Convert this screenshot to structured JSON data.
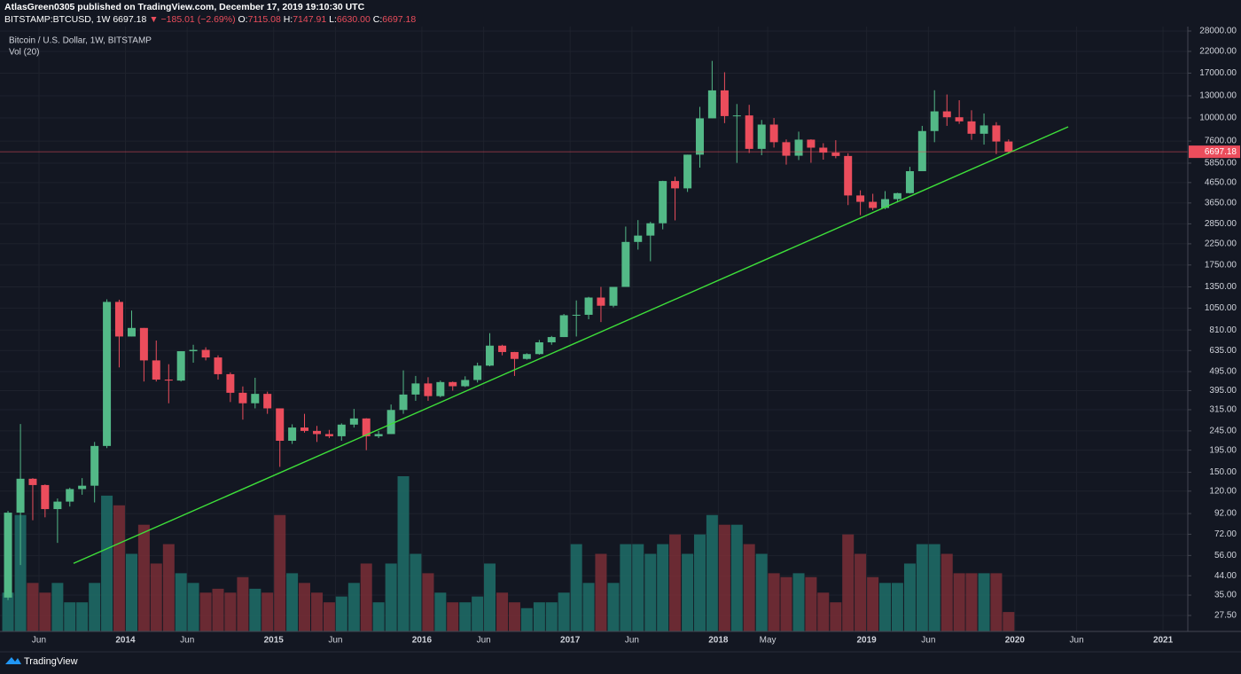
{
  "header": {
    "published": "AtlasGreen0305 published on TradingView.com, December 17, 2019 19:10:30 UTC",
    "symbol": "BITSTAMP:BTCUSD, 1W",
    "last": "6697.18",
    "change": "▼ −185.01 (−2.69%)",
    "ohlc": [
      {
        "label": "O:",
        "value": "7115.08"
      },
      {
        "label": "H:",
        "value": "7147.91"
      },
      {
        "label": "L:",
        "value": "6630.00"
      },
      {
        "label": "C:",
        "value": "6697.18"
      }
    ]
  },
  "footer": {
    "brand": "TradingView"
  },
  "chart_data": {
    "type": "candlestick",
    "title": "Bitcoin / U.S. Dollar, 1W, BITSTAMP",
    "volume_label": "Vol (20)",
    "log": true,
    "grid": true,
    "up_color": "#53b987",
    "down_color": "#eb4d5c",
    "up_volume_color": "#1f6e68",
    "down_volume_color": "#7a2e36",
    "xlim": [
      2013.154,
      2021.167
    ],
    "ylim": [
      22.76,
      29510
    ],
    "xticks": [
      {
        "value": 2013.417,
        "label": "Jun"
      },
      {
        "value": 2014,
        "label": "2014"
      },
      {
        "value": 2014.417,
        "label": "Jun"
      },
      {
        "value": 2015,
        "label": "2015"
      },
      {
        "value": 2015.417,
        "label": "Jun"
      },
      {
        "value": 2016,
        "label": "2016"
      },
      {
        "value": 2016.417,
        "label": "Jun"
      },
      {
        "value": 2017,
        "label": "2017"
      },
      {
        "value": 2017.417,
        "label": "Jun"
      },
      {
        "value": 2018,
        "label": "2018"
      },
      {
        "value": 2018.333,
        "label": "May"
      },
      {
        "value": 2019,
        "label": "2019"
      },
      {
        "value": 2019.417,
        "label": "Jun"
      },
      {
        "value": 2020,
        "label": "2020"
      },
      {
        "value": 2020.417,
        "label": "Jun"
      },
      {
        "value": 2021,
        "label": "2021"
      }
    ],
    "yticks": [
      {
        "value": 28000,
        "label": "28000.00"
      },
      {
        "value": 22000,
        "label": "22000.00"
      },
      {
        "value": 17000,
        "label": "17000.00"
      },
      {
        "value": 13000,
        "label": "13000.00"
      },
      {
        "value": 10000,
        "label": "10000.00"
      },
      {
        "value": 7600,
        "label": "7600.00"
      },
      {
        "value": 5850,
        "label": "5850.00"
      },
      {
        "value": 4650,
        "label": "4650.00"
      },
      {
        "value": 3650,
        "label": "3650.00"
      },
      {
        "value": 2850,
        "label": "2850.00"
      },
      {
        "value": 2250,
        "label": "2250.00"
      },
      {
        "value": 1750,
        "label": "1750.00"
      },
      {
        "value": 1350,
        "label": "1350.00"
      },
      {
        "value": 1050,
        "label": "1050.00"
      },
      {
        "value": 810,
        "label": "810.00"
      },
      {
        "value": 635,
        "label": "635.00"
      },
      {
        "value": 495,
        "label": "495.00"
      },
      {
        "value": 395,
        "label": "395.00"
      },
      {
        "value": 315,
        "label": "315.00"
      },
      {
        "value": 245,
        "label": "245.00"
      },
      {
        "value": 195,
        "label": "195.00"
      },
      {
        "value": 150,
        "label": "150.00"
      },
      {
        "value": 120,
        "label": "120.00"
      },
      {
        "value": 92,
        "label": "92.00"
      },
      {
        "value": 72,
        "label": "72.00"
      },
      {
        "value": 56,
        "label": "56.00"
      },
      {
        "value": 44,
        "label": "44.00"
      },
      {
        "value": 35,
        "label": "35.00"
      },
      {
        "value": 27.5,
        "label": "27.50"
      }
    ],
    "x": [
      2013.208,
      2013.292,
      2013.375,
      2013.458,
      2013.542,
      2013.625,
      2013.708,
      2013.792,
      2013.875,
      2013.958,
      2014.042,
      2014.125,
      2014.208,
      2014.292,
      2014.375,
      2014.458,
      2014.542,
      2014.625,
      2014.708,
      2014.792,
      2014.875,
      2014.958,
      2015.042,
      2015.125,
      2015.208,
      2015.292,
      2015.375,
      2015.458,
      2015.542,
      2015.625,
      2015.708,
      2015.792,
      2015.875,
      2015.958,
      2016.042,
      2016.125,
      2016.208,
      2016.292,
      2016.375,
      2016.458,
      2016.542,
      2016.625,
      2016.708,
      2016.792,
      2016.875,
      2016.958,
      2017.042,
      2017.125,
      2017.208,
      2017.292,
      2017.375,
      2017.458,
      2017.542,
      2017.625,
      2017.708,
      2017.792,
      2017.875,
      2017.958,
      2018.042,
      2018.125,
      2018.208,
      2018.292,
      2018.375,
      2018.458,
      2018.542,
      2018.625,
      2018.708,
      2018.792,
      2018.875,
      2018.958,
      2019.042,
      2019.125,
      2019.208,
      2019.292,
      2019.375,
      2019.458,
      2019.542,
      2019.625,
      2019.708,
      2019.792,
      2019.875,
      2019.958
    ],
    "open": [
      34,
      93,
      139,
      129,
      97,
      106,
      123,
      128,
      205,
      1130,
      750,
      830,
      565,
      450,
      445,
      630,
      640,
      585,
      480,
      385,
      340,
      380,
      320,
      218,
      255,
      245,
      236,
      230,
      264,
      284,
      230,
      236,
      314,
      377,
      430,
      370,
      437,
      416,
      448,
      531,
      673,
      624,
      575,
      609,
      700,
      745,
      965,
      970,
      1190,
      1080,
      1350,
      2300,
      2480,
      2870,
      4735,
      4340,
      6470,
      9950,
      13860,
      10220,
      10300,
      6930,
      9240,
      7500,
      6390,
      7730,
      7030,
      6630,
      6370,
      3990,
      3700,
      3440,
      3820,
      4100,
      5320,
      8560,
      10810,
      10080,
      9600,
      8290,
      9150,
      7560
    ],
    "high": [
      95,
      266,
      140,
      130,
      110,
      125,
      140,
      215,
      1165,
      1160,
      1020,
      830,
      715,
      540,
      630,
      680,
      660,
      600,
      490,
      415,
      460,
      390,
      320,
      265,
      300,
      260,
      248,
      268,
      318,
      285,
      245,
      335,
      502,
      470,
      463,
      445,
      440,
      468,
      550,
      780,
      680,
      625,
      615,
      720,
      755,
      980,
      1150,
      1200,
      1350,
      1350,
      2760,
      2980,
      2920,
      4750,
      4980,
      6470,
      11400,
      19660,
      17180,
      11790,
      11680,
      9760,
      9990,
      7750,
      8500,
      7760,
      7410,
      7680,
      6580,
      4240,
      4070,
      4200,
      4120,
      5600,
      9100,
      13880,
      13200,
      12330,
      10950,
      10540,
      9510,
      7750
    ],
    "low": [
      33,
      50,
      85,
      88,
      65,
      100,
      115,
      105,
      200,
      520,
      750,
      440,
      440,
      340,
      440,
      550,
      565,
      450,
      345,
      280,
      320,
      300,
      160,
      210,
      240,
      215,
      225,
      218,
      255,
      195,
      225,
      236,
      300,
      350,
      350,
      365,
      395,
      412,
      435,
      527,
      600,
      470,
      570,
      605,
      680,
      745,
      750,
      920,
      890,
      1060,
      1350,
      2100,
      1830,
      2670,
      2970,
      4160,
      5550,
      9950,
      9400,
      5870,
      6600,
      6430,
      7040,
      5750,
      6070,
      5880,
      6100,
      6200,
      3560,
      3160,
      3350,
      3390,
      3670,
      4080,
      5320,
      7500,
      9100,
      9320,
      7710,
      7290,
      6520,
      6630
    ],
    "close": [
      93,
      139,
      129,
      97,
      106,
      123,
      128,
      205,
      1130,
      750,
      830,
      565,
      450,
      445,
      630,
      640,
      585,
      480,
      385,
      340,
      380,
      320,
      218,
      255,
      245,
      236,
      230,
      264,
      284,
      230,
      236,
      314,
      377,
      430,
      370,
      437,
      416,
      448,
      531,
      673,
      624,
      575,
      609,
      700,
      745,
      965,
      970,
      1190,
      1080,
      1350,
      2300,
      2480,
      2870,
      4735,
      4340,
      6470,
      9950,
      13860,
      10220,
      10300,
      6930,
      9240,
      7500,
      6390,
      7730,
      7030,
      6630,
      6370,
      3990,
      3700,
      3440,
      3820,
      4100,
      5320,
      8560,
      10810,
      10080,
      9600,
      8290,
      9150,
      7560,
      6697.18
    ],
    "volume": [
      20,
      60,
      25,
      20,
      25,
      15,
      15,
      25,
      70,
      65,
      40,
      55,
      35,
      45,
      30,
      25,
      20,
      22,
      20,
      28,
      22,
      20,
      60,
      30,
      25,
      20,
      15,
      18,
      25,
      35,
      15,
      35,
      80,
      40,
      30,
      20,
      15,
      15,
      18,
      35,
      20,
      15,
      12,
      15,
      15,
      20,
      45,
      25,
      40,
      25,
      45,
      45,
      40,
      45,
      50,
      40,
      50,
      60,
      55,
      55,
      45,
      40,
      30,
      28,
      30,
      28,
      20,
      15,
      50,
      40,
      28,
      25,
      25,
      35,
      45,
      45,
      40,
      30,
      30,
      30,
      30,
      10
    ],
    "trendline": {
      "x": [
        2013.65,
        2020.36
      ],
      "y": [
        51,
        9000
      ],
      "color": "#3ee03a"
    },
    "last_price": 6697.18,
    "last_price_color": "#eb4d5c"
  }
}
